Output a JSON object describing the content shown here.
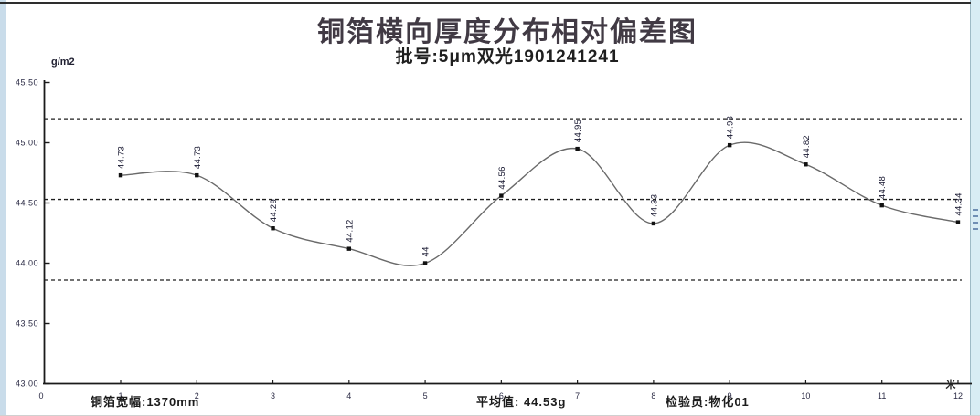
{
  "header": {
    "title": "铜箔横向厚度分布相对偏差图",
    "subtitle": "批号:5μm双光1901241241"
  },
  "chart_data": {
    "type": "line",
    "title": "铜箔横向厚度分布相对偏差图",
    "subtitle": "批号:5μm双光1901241241",
    "ylabel": "g/m2",
    "x": [
      1,
      2,
      3,
      4,
      5,
      6,
      7,
      8,
      9,
      10,
      11,
      12
    ],
    "values": [
      44.73,
      44.73,
      44.29,
      44.12,
      44.0,
      44.56,
      44.95,
      44.33,
      44.98,
      44.82,
      44.48,
      44.34
    ],
    "point_labels": [
      "44.73",
      "44.73",
      "44.29",
      "44.12",
      "44",
      "44.56",
      "44.95",
      "44.33",
      "44.98",
      "44.82",
      "44.48",
      "44.34"
    ],
    "mean": 44.53,
    "upper_limit": 45.2,
    "lower_limit": 43.86,
    "ylim": [
      43.0,
      45.5
    ],
    "y_tick_labels": [
      "43.00",
      "43.50",
      "44.00",
      "44.50",
      "45.00",
      "45.50"
    ],
    "x_tick_labels": [
      "0",
      "1",
      "2",
      "3",
      "4",
      "5",
      "6",
      "7",
      "8",
      "9",
      "10",
      "11",
      "12"
    ],
    "x_axis_unit": "米",
    "legend": "none",
    "grid": "dashed control-limit lines only",
    "line_color": "#6a6a6a",
    "marker_color": "#111111",
    "label_color": "#15152e",
    "axis_color": "#1a1a1a",
    "tick_label_color": "#2b2b45",
    "limit_line_color": "#1f1f1f"
  },
  "annotations": {
    "foil_width": "铜箔宽幅:1370mm",
    "mean_text": "平均值: 44.53g",
    "inspector_text": "检验员:物化01"
  },
  "unit_label": "g/m2"
}
